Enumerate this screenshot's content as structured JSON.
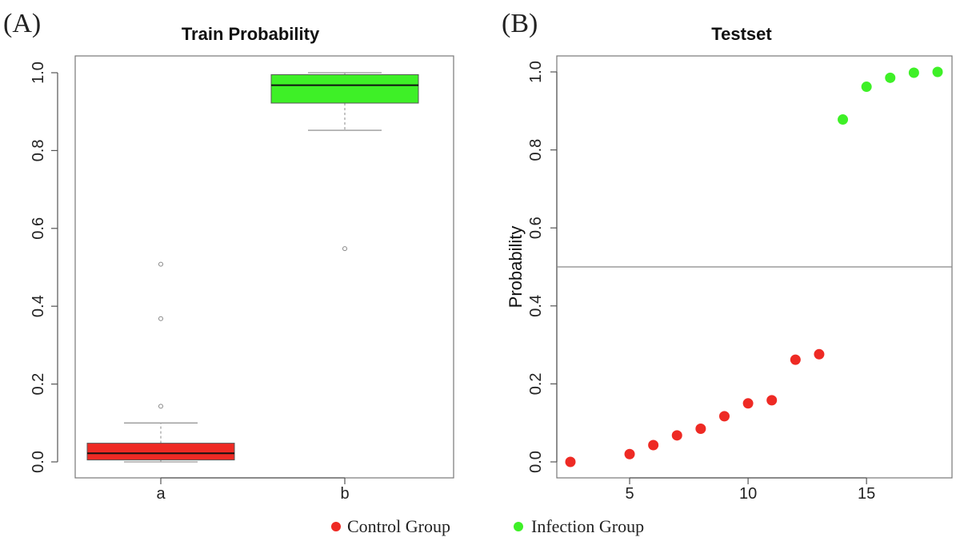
{
  "panel_labels": [
    "(A)",
    "(B)"
  ],
  "legend": {
    "entries": [
      {
        "label": "Control Group",
        "color": "#ee2a24"
      },
      {
        "label": "Infection Group",
        "color": "#3ef027"
      }
    ]
  },
  "chart_data": [
    {
      "type": "box",
      "title": "Train Probability",
      "xlabel": "",
      "ylabel": "",
      "ylim": [
        0,
        1
      ],
      "yticks": [
        "0.0",
        "0.2",
        "0.4",
        "0.6",
        "0.8",
        "1.0"
      ],
      "categories": [
        "a",
        "b"
      ],
      "boxes": [
        {
          "category": "a",
          "whisker_low": 0.0,
          "q1": 0.005,
          "median": 0.022,
          "q3": 0.048,
          "whisker_high": 0.1,
          "outliers": [
            0.143,
            0.368,
            0.508
          ],
          "color": "#ee2a24"
        },
        {
          "category": "b",
          "whisker_low": 0.852,
          "q1": 0.922,
          "median": 0.968,
          "q3": 0.995,
          "whisker_high": 1.0,
          "outliers": [
            0.548
          ],
          "color": "#3ef027"
        }
      ]
    },
    {
      "type": "scatter",
      "title": "Testset",
      "xlabel": "",
      "ylabel": "Probability",
      "xlim": [
        2,
        18.2
      ],
      "ylim": [
        0,
        1
      ],
      "xticks": [
        "5",
        "10",
        "15"
      ],
      "yticks": [
        "0.0",
        "0.2",
        "0.4",
        "0.6",
        "0.8",
        "1.0"
      ],
      "threshold": 0.5,
      "series": [
        {
          "name": "Control Group",
          "color": "#ee2a24",
          "x": [
            2.5,
            5,
            6,
            7,
            8,
            9,
            10,
            11,
            12,
            13
          ],
          "y": [
            0.0,
            0.02,
            0.043,
            0.068,
            0.085,
            0.117,
            0.15,
            0.158,
            0.262,
            0.276
          ]
        },
        {
          "name": "Infection Group",
          "color": "#3ef027",
          "x": [
            14,
            15,
            16,
            17,
            18
          ],
          "y": [
            0.878,
            0.962,
            0.985,
            0.998,
            1.0
          ]
        }
      ]
    }
  ]
}
